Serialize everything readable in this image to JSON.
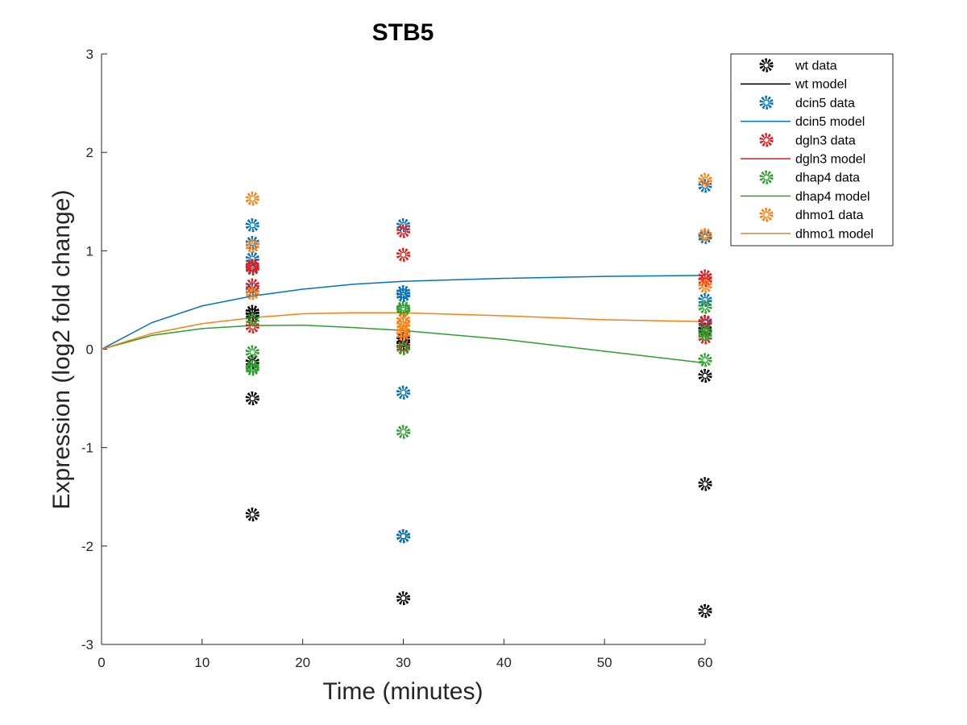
{
  "chart_data": {
    "type": "scatter",
    "title": "STB5",
    "xlabel": "Time (minutes)",
    "ylabel": "Expression (log2 fold change)",
    "xlim": [
      0,
      60
    ],
    "ylim": [
      -3,
      3
    ],
    "xticks": [
      0,
      10,
      20,
      30,
      40,
      50,
      60
    ],
    "yticks": [
      -3,
      -2,
      -1,
      0,
      1,
      2,
      3
    ],
    "grid": false,
    "legend_position": "top-right outside",
    "series": [
      {
        "name": "wt",
        "color": "#000000",
        "data_label": "wt data",
        "model_label": "wt model",
        "data": [
          [
            15,
            0.38
          ],
          [
            15,
            0.35
          ],
          [
            15,
            -0.13
          ],
          [
            15,
            -0.5
          ],
          [
            15,
            -1.68
          ],
          [
            30,
            0.55
          ],
          [
            30,
            0.1
          ],
          [
            30,
            0.05
          ],
          [
            30,
            -1.9
          ],
          [
            30,
            -2.53
          ],
          [
            60,
            0.2
          ],
          [
            60,
            -0.27
          ],
          [
            60,
            -1.37
          ],
          [
            60,
            -2.66
          ]
        ],
        "model": []
      },
      {
        "name": "dcin5",
        "color": "#0072BD",
        "data_label": "dcin5 data",
        "model_label": "dcin5 model",
        "data": [
          [
            15,
            1.26
          ],
          [
            15,
            1.08
          ],
          [
            15,
            0.92
          ],
          [
            15,
            0.82
          ],
          [
            15,
            0.6
          ],
          [
            30,
            1.26
          ],
          [
            30,
            0.58
          ],
          [
            30,
            0.55
          ],
          [
            30,
            -0.44
          ],
          [
            30,
            -1.9
          ],
          [
            60,
            1.66
          ],
          [
            60,
            1.14
          ],
          [
            60,
            0.5
          ],
          [
            60,
            0.27
          ]
        ],
        "model": [
          [
            0,
            0
          ],
          [
            5,
            0.27
          ],
          [
            10,
            0.44
          ],
          [
            15,
            0.54
          ],
          [
            20,
            0.61
          ],
          [
            25,
            0.66
          ],
          [
            30,
            0.69
          ],
          [
            40,
            0.72
          ],
          [
            50,
            0.74
          ],
          [
            60,
            0.75
          ]
        ]
      },
      {
        "name": "dgln3",
        "color": "#D95319",
        "stroke": "#e41a1c",
        "data_label": "dgln3 data",
        "model_label": "dgln3 model",
        "data": [
          [
            15,
            0.85
          ],
          [
            15,
            0.83
          ],
          [
            15,
            0.65
          ],
          [
            15,
            0.23
          ],
          [
            30,
            1.2
          ],
          [
            30,
            0.96
          ],
          [
            30,
            0.02
          ],
          [
            60,
            0.74
          ],
          [
            60,
            0.7
          ],
          [
            60,
            0.28
          ],
          [
            60,
            0.12
          ]
        ],
        "model": []
      },
      {
        "name": "dhap4",
        "color": "#2ca02c",
        "data_label": "dhap4 data",
        "model_label": "dhap4 model",
        "data": [
          [
            15,
            0.3
          ],
          [
            15,
            -0.03
          ],
          [
            15,
            -0.18
          ],
          [
            15,
            -0.2
          ],
          [
            30,
            0.42
          ],
          [
            30,
            0.4
          ],
          [
            30,
            0.01
          ],
          [
            30,
            -0.84
          ],
          [
            60,
            0.43
          ],
          [
            60,
            0.18
          ],
          [
            60,
            0.15
          ],
          [
            60,
            -0.11
          ]
        ],
        "model": [
          [
            0,
            0
          ],
          [
            5,
            0.14
          ],
          [
            10,
            0.21
          ],
          [
            15,
            0.24
          ],
          [
            20,
            0.245
          ],
          [
            25,
            0.22
          ],
          [
            30,
            0.19
          ],
          [
            40,
            0.1
          ],
          [
            50,
            -0.02
          ],
          [
            60,
            -0.14
          ]
        ]
      },
      {
        "name": "dhmo1",
        "color": "#ff7f0e",
        "data_label": "dhmo1 data",
        "model_label": "dhmo1 model",
        "data": [
          [
            15,
            1.53
          ],
          [
            15,
            1.05
          ],
          [
            15,
            0.57
          ],
          [
            30,
            0.3
          ],
          [
            30,
            0.25
          ],
          [
            30,
            0.18
          ],
          [
            30,
            0.15
          ],
          [
            60,
            1.72
          ],
          [
            60,
            1.16
          ],
          [
            60,
            0.64
          ]
        ],
        "model": [
          [
            0,
            0
          ],
          [
            5,
            0.16
          ],
          [
            10,
            0.26
          ],
          [
            15,
            0.32
          ],
          [
            20,
            0.36
          ],
          [
            25,
            0.37
          ],
          [
            30,
            0.37
          ],
          [
            40,
            0.34
          ],
          [
            50,
            0.3
          ],
          [
            60,
            0.28
          ]
        ]
      }
    ]
  }
}
